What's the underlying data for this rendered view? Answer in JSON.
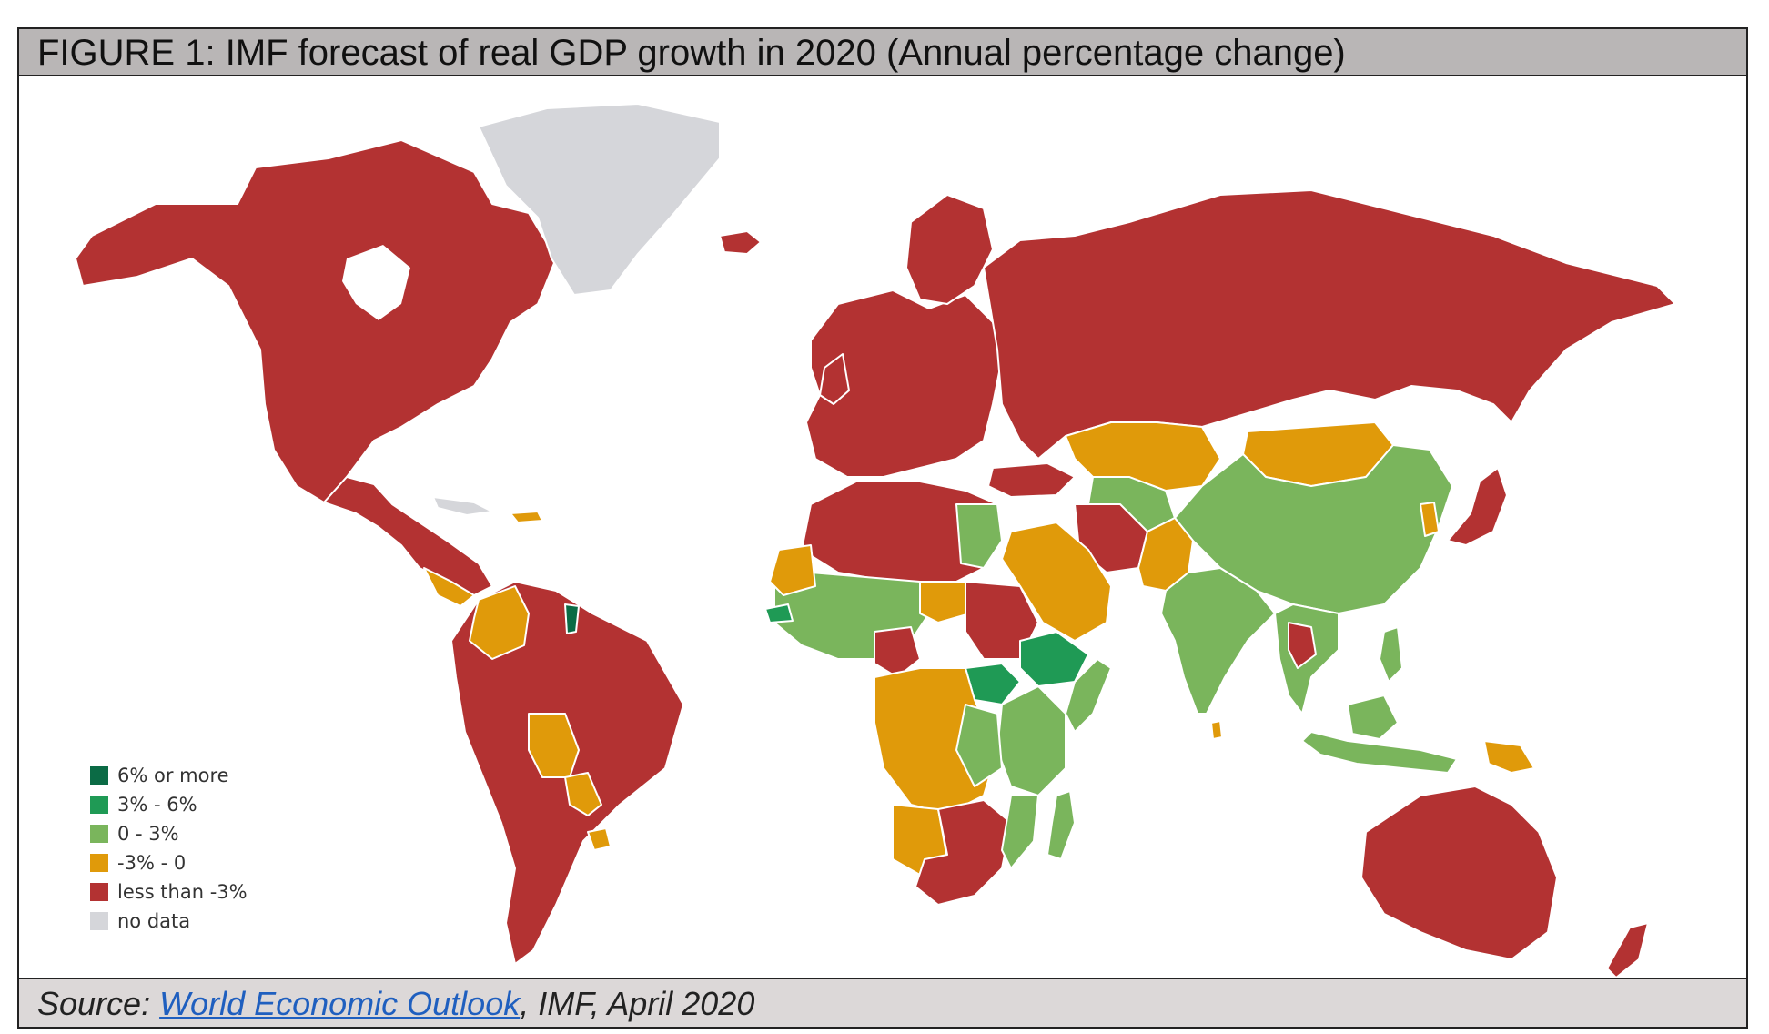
{
  "figure": {
    "title": "FIGURE 1: IMF forecast of real GDP growth in 2020 (Annual percentage change)"
  },
  "legend": {
    "items": [
      {
        "label": "6% or more",
        "color": "#0b6b45"
      },
      {
        "label": "3% - 6%",
        "color": "#1f9a55"
      },
      {
        "label": "0 - 3%",
        "color": "#7ab55c"
      },
      {
        "label": "-3% - 0",
        "color": "#e09a0a"
      },
      {
        "label": "less than -3%",
        "color": "#b33232"
      },
      {
        "label": "no data",
        "color": "#d5d6da"
      }
    ]
  },
  "source": {
    "prefix": "Source: ",
    "link_text": "World Economic Outlook",
    "suffix": ", IMF, April 2020"
  }
}
